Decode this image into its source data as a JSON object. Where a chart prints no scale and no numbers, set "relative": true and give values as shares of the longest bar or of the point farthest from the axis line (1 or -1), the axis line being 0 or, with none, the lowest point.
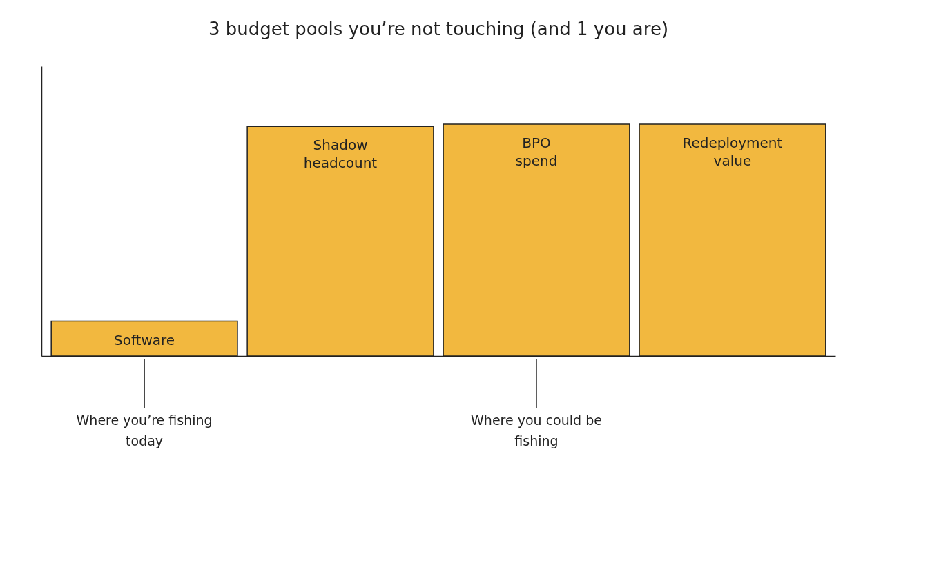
{
  "chart_data": {
    "type": "bar",
    "title": "3 budget pools you’re not touching (and 1 you are)",
    "categories": [
      "Software",
      "Shadow headcount",
      "BPO spend",
      "Redeployment value"
    ],
    "relative": true,
    "series": [
      {
        "color": "#f2b83f",
        "values": [
          0.15,
          0.99,
          1,
          1
        ]
      }
    ],
    "annotations": [
      {
        "text": "Where you’re fishing today",
        "x": "Software"
      },
      {
        "text": "Where you could be fishing",
        "x": "BPO spend"
      }
    ],
    "grid": false
  }
}
